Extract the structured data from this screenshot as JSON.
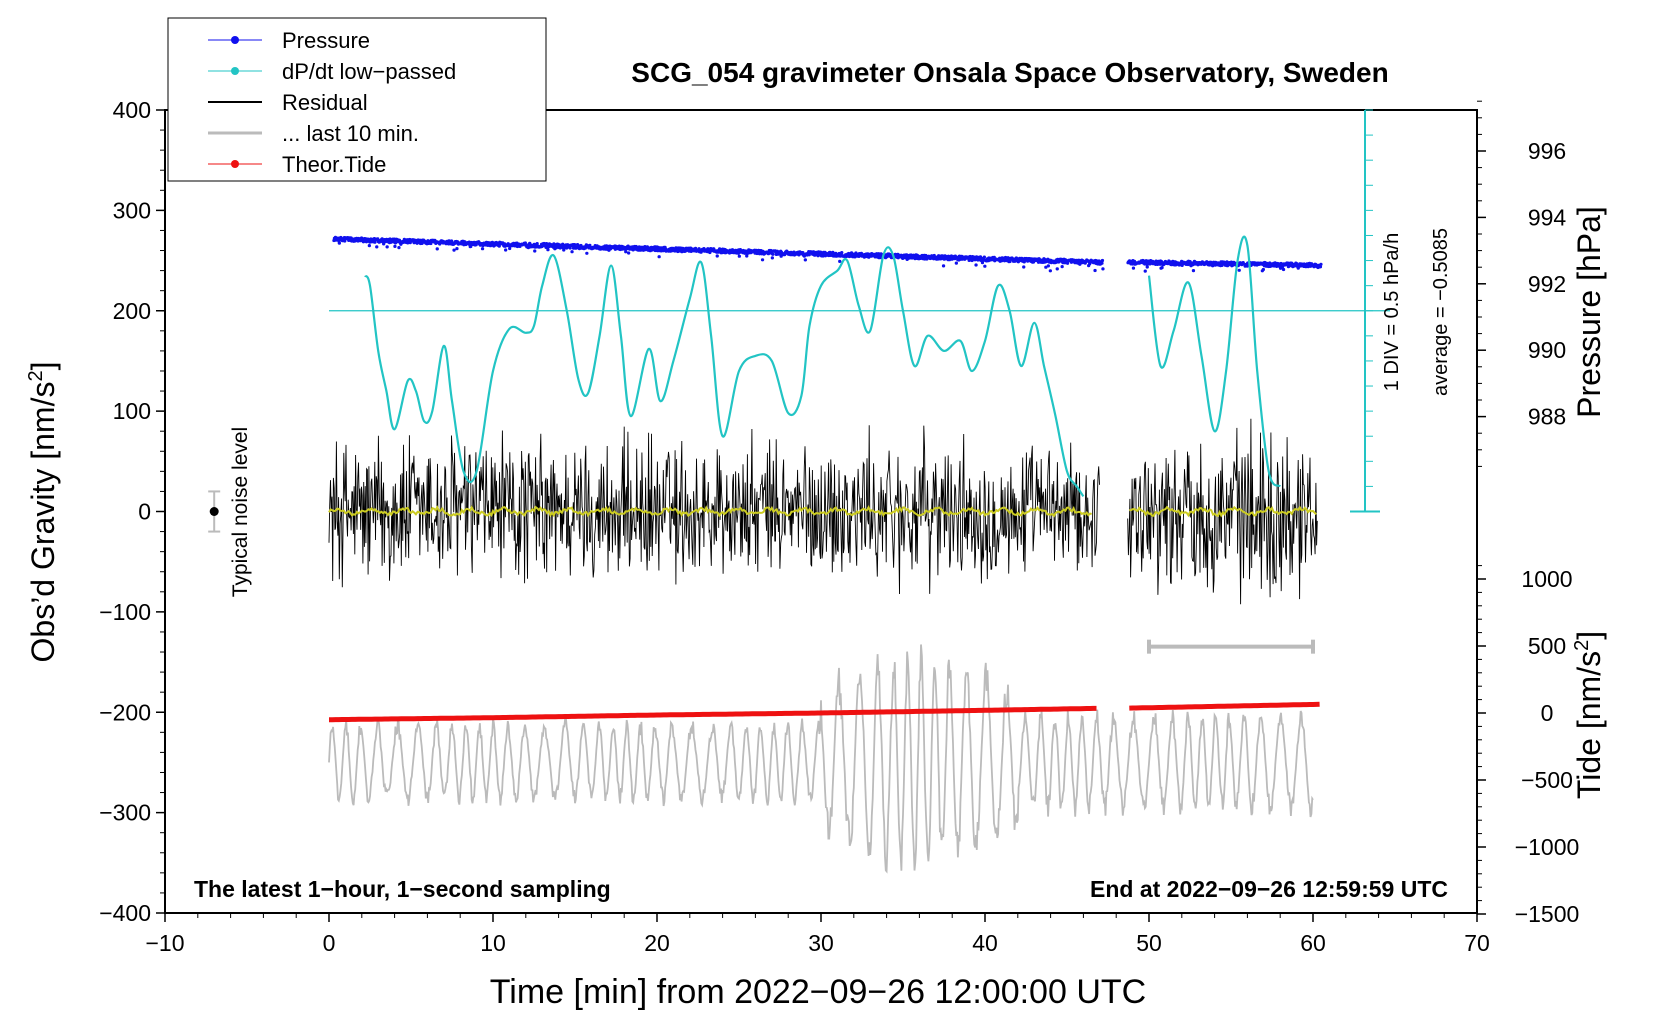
{
  "chart_data": {
    "type": "line",
    "title": "SCG_054 gravimeter Onsala Space Observatory, Sweden",
    "xlabel": "Time [min] from 2022−09−26 12:00:00 UTC",
    "ylabel_main": "Obs’d Gravity [nm/s",
    "ylabel_sup": "2",
    "ylabel_close": "]",
    "ylabel_pressure": "Pressure [hPa]",
    "ylabel_tide": "Tide [nm/s",
    "ylabel_tide_sup": "2",
    "ylabel_tide_close": "]",
    "xlim": [
      -10,
      70
    ],
    "ylim": [
      -400,
      400
    ],
    "x_ticks": [
      -10,
      0,
      10,
      20,
      30,
      40,
      50,
      60,
      70
    ],
    "x_tick_labels": [
      "−10",
      "0",
      "10",
      "20",
      "30",
      "40",
      "50",
      "60",
      "70"
    ],
    "y_ticks": [
      -400,
      -300,
      -200,
      -100,
      0,
      100,
      200,
      300,
      400
    ],
    "y_tick_labels": [
      "−400",
      "−300",
      "−200",
      "−100",
      "0",
      "100",
      "200",
      "300",
      "400"
    ],
    "pressure_axis": {
      "range": [
        986,
        998
      ],
      "ticks": [
        988,
        990,
        992,
        994,
        996
      ],
      "tick_labels": [
        "988",
        "990",
        "992",
        "994",
        "996"
      ]
    },
    "tide_axis": {
      "range": [
        -1500,
        1500
      ],
      "ticks": [
        -1500,
        -1000,
        -500,
        0,
        500,
        1000
      ],
      "tick_labels": [
        "−1500",
        "−1000",
        "−500",
        "0",
        "500",
        "1000"
      ]
    },
    "legend": {
      "position": "top-left",
      "entries": [
        {
          "label": "Pressure",
          "color": "#1010ee",
          "marker": "dot"
        },
        {
          "label": "dP/dt low−passed",
          "color": "#22c4c4",
          "marker": "dot"
        },
        {
          "label": "Residual",
          "color": "#000000",
          "marker": "line"
        },
        {
          "label": "... last 10 min.",
          "color": "#bbbbbb",
          "marker": "line"
        },
        {
          "label": "Theor.Tide",
          "color": "#ee1111",
          "marker": "dot"
        }
      ]
    },
    "annotations": {
      "noise_label": "Typical noise level",
      "noise_level": 20,
      "dpdt_scale": "1 DIV = 0.5 hPa/h",
      "dpdt_average": "average = −0.5085",
      "bottom_left": "The latest 1−hour, 1−second sampling",
      "bottom_right": "End at 2022−09−26 12:59:59 UTC"
    },
    "data_gap": [
      47.2,
      48.7
    ],
    "series": [
      {
        "name": "Pressure",
        "axis": "pressure",
        "color": "#1010ee",
        "x": [
          0,
          10,
          20,
          30,
          40,
          47,
          49,
          55,
          60.5
        ],
        "values": [
          993.35,
          993.2,
          993.05,
          992.9,
          992.75,
          992.65,
          992.65,
          992.6,
          992.55
        ]
      },
      {
        "name": "dP/dt low−passed",
        "axis": "gravity",
        "color": "#22c4c4",
        "x": [
          2.2,
          2.5,
          3.0,
          3.5,
          4.0,
          4.8,
          5.3,
          5.8,
          6.3,
          7.0,
          7.5,
          8.2,
          9.0,
          10.0,
          11.0,
          12.0,
          12.5,
          13.0,
          13.7,
          14.5,
          15.2,
          15.8,
          16.5,
          17.2,
          17.8,
          18.4,
          19.5,
          20.2,
          21.0,
          22.0,
          22.7,
          23.3,
          24.0,
          25.0,
          26.0,
          27.0,
          28.0,
          28.8,
          29.3,
          30.0,
          31.0,
          31.6,
          32.3,
          33.0,
          33.8,
          34.4,
          35.0,
          35.7,
          36.5,
          37.5,
          38.5,
          39.2,
          40.0,
          40.8,
          41.5,
          42.2,
          43.0,
          43.6,
          44.3,
          45.0,
          45.6,
          46.0,
          50.0,
          50.7,
          51.5,
          52.4,
          53.2,
          54.0,
          54.7,
          55.4,
          56.0,
          56.6,
          57.3,
          58.0
        ],
        "values": [
          235,
          225,
          160,
          120,
          82,
          130,
          120,
          90,
          100,
          165,
          110,
          40,
          40,
          140,
          182,
          178,
          185,
          225,
          255,
          200,
          132,
          118,
          175,
          245,
          175,
          95,
          162,
          110,
          150,
          212,
          248,
          175,
          75,
          140,
          155,
          150,
          98,
          115,
          185,
          225,
          240,
          250,
          205,
          180,
          255,
          255,
          200,
          145,
          175,
          160,
          170,
          140,
          170,
          225,
          200,
          145,
          188,
          145,
          95,
          40,
          25,
          15,
          235,
          145,
          180,
          228,
          155,
          80,
          140,
          250,
          265,
          140,
          40,
          25
        ]
      },
      {
        "name": "Theor.Tide",
        "axis": "tide",
        "color": "#ee1111",
        "x": [
          0,
          10,
          20,
          30,
          40,
          47,
          49,
          60.5
        ],
        "values": [
          -50,
          -35,
          -15,
          0,
          20,
          35,
          37,
          65
        ]
      }
    ],
    "residual_envelope": {
      "x": [
        0,
        5,
        10,
        15,
        20,
        25,
        30,
        35,
        40,
        45,
        47,
        49,
        52,
        55,
        58,
        60
      ],
      "amplitude": [
        90,
        95,
        95,
        85,
        90,
        85,
        85,
        90,
        80,
        75,
        70,
        90,
        85,
        95,
        110,
        80
      ]
    },
    "last10min_bar": {
      "x": [
        50,
        60
      ],
      "tide_value": 495
    }
  }
}
